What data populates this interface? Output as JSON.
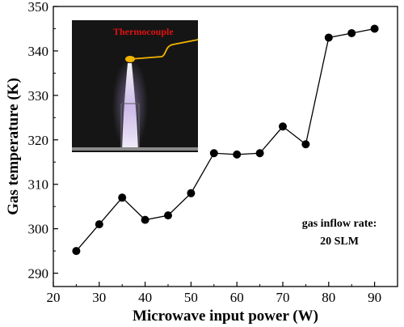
{
  "chart_data": {
    "type": "line",
    "xlabel": "Microwave input power (W)",
    "ylabel": "Gas temperature (K)",
    "xlim": [
      20,
      95
    ],
    "ylim": [
      287,
      350
    ],
    "xticks": [
      20,
      30,
      40,
      50,
      60,
      70,
      80,
      90
    ],
    "yticks": [
      290,
      300,
      310,
      320,
      330,
      340,
      350
    ],
    "x": [
      25,
      30,
      35,
      40,
      45,
      50,
      55,
      60,
      65,
      70,
      75,
      80,
      85,
      90
    ],
    "series": [
      {
        "values": [
          295,
          301,
          307,
          302,
          303,
          308,
          317,
          316.7,
          317,
          323,
          319,
          343,
          344,
          345
        ]
      }
    ],
    "annotation": {
      "line1": "gas inflow rate:",
      "line2": "20 SLM"
    },
    "inset": {
      "label": "Thermocouple",
      "label_color": "#e01010",
      "wire_color": "#f2b400",
      "background_color": "#151515"
    }
  }
}
